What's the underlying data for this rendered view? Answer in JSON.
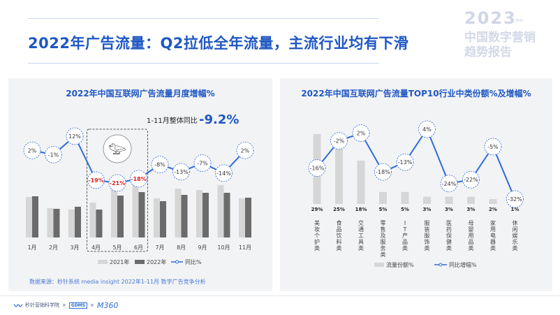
{
  "page": {
    "title": "2022年广告流量：Q2拉低全年流量，主流行业均有下滑",
    "brand_year": "2023",
    "brand_line1": "中国数字营销",
    "brand_line2": "趋势报告",
    "source": "数据来源：秒针系统 media insight  2022年1-11月 数字广告竞争分析",
    "footer": {
      "org1": "秒针营销科学院",
      "sep": "×",
      "org2": "GDMS",
      "org3": "M360"
    }
  },
  "chart_data": [
    {
      "type": "bar",
      "title": "2022年中国互联网广告流量月度增幅%",
      "annotation_label": "1-11月整体同比",
      "annotation_value": "-9.2%",
      "categories": [
        "1月",
        "2月",
        "3月",
        "4月",
        "5月",
        "6月",
        "7月",
        "8月",
        "9月",
        "10月",
        "11月"
      ],
      "series": [
        {
          "name": "2021年",
          "values": [
            58,
            42,
            40,
            50,
            80,
            82,
            56,
            70,
            68,
            75,
            56
          ],
          "color": "#d6d6d6"
        },
        {
          "name": "2022年",
          "values": [
            59,
            41,
            44,
            40,
            60,
            65,
            52,
            61,
            64,
            64,
            57
          ],
          "color": "#6b6b6b"
        }
      ],
      "line": {
        "name": "同比%",
        "labels": [
          "2%",
          "-1%",
          "12%",
          "-19%",
          "-21%",
          "-18%",
          "-8%",
          "-13%",
          "-7%",
          "-14%",
          "2%"
        ],
        "values": [
          2,
          -1,
          12,
          -19,
          -21,
          -18,
          -8,
          -13,
          -7,
          -14,
          2
        ],
        "highlight": [
          false,
          false,
          false,
          true,
          true,
          true,
          false,
          false,
          false,
          false,
          false
        ],
        "highlight_color": "#e02020"
      },
      "highlight_range": [
        "4月",
        "6月"
      ],
      "icon": "swan-logo-icon",
      "legend_position": "bottom"
    },
    {
      "type": "bar",
      "title": "2022年中国互联网广告流量TOP10行业中类份额%及增幅%",
      "categories": [
        "美妆个护类",
        "食品饮料类",
        "交通工具类",
        "零售及服务类",
        "IT产品类",
        "服装服饰类",
        "医药保健类",
        "母婴用品类",
        "家用电器类",
        "休闲娱乐类"
      ],
      "series": [
        {
          "name": "流量份额%",
          "values": [
            29,
            25,
            18,
            5,
            5,
            3,
            3,
            3,
            2,
            1
          ],
          "labels": [
            "29%",
            "25%",
            "18%",
            "5%",
            "5%",
            "3%",
            "3%",
            "3%",
            "2%",
            "1%"
          ],
          "color": "#d6d6d6"
        }
      ],
      "line": {
        "name": "同比增幅%",
        "labels": [
          "-16%",
          "-2%",
          "2%",
          "-18%",
          "-13%",
          "4%",
          "-24%",
          "-22%",
          "-5%",
          "-32%"
        ],
        "values": [
          -16,
          -2,
          2,
          -18,
          -13,
          4,
          -24,
          -22,
          -5,
          -32
        ]
      },
      "legend_position": "bottom"
    }
  ],
  "colors": {
    "accent": "#1f57c3",
    "line": "#2e6ad8",
    "bar_2021": "#d6d6d6",
    "bar_2022": "#6b6b6b",
    "highlight": "#e02020"
  }
}
